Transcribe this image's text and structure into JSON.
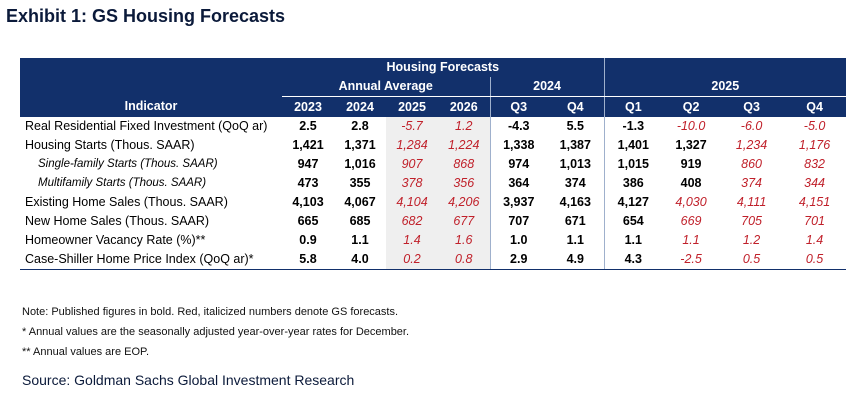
{
  "title": "Exhibit 1: GS Housing Forecasts",
  "table": {
    "banner": "Housing Forecasts",
    "group_annual": "Annual Average",
    "group_2024": "2024",
    "group_2025": "2025",
    "indicator_header": "Indicator",
    "columns": [
      "2023",
      "2024",
      "2025",
      "2026",
      "Q3",
      "Q4",
      "Q1",
      "Q2",
      "Q3",
      "Q4"
    ],
    "rows": [
      {
        "label": "Real Residential Fixed Investment (QoQ ar)",
        "sub": false,
        "values": [
          "2.5",
          "2.8",
          "-5.7",
          "1.2",
          "-4.3",
          "5.5",
          "-1.3",
          "-10.0",
          "-6.0",
          "-5.0"
        ],
        "forecast": [
          false,
          false,
          true,
          true,
          false,
          false,
          false,
          true,
          true,
          true
        ]
      },
      {
        "label": "Housing Starts (Thous. SAAR)",
        "sub": false,
        "values": [
          "1,421",
          "1,371",
          "1,284",
          "1,224",
          "1,338",
          "1,387",
          "1,401",
          "1,327",
          "1,234",
          "1,176"
        ],
        "forecast": [
          false,
          false,
          true,
          true,
          false,
          false,
          false,
          false,
          true,
          true
        ]
      },
      {
        "label": "Single-family Starts (Thous. SAAR)",
        "sub": true,
        "values": [
          "947",
          "1,016",
          "907",
          "868",
          "974",
          "1,013",
          "1,015",
          "919",
          "860",
          "832"
        ],
        "forecast": [
          false,
          false,
          true,
          true,
          false,
          false,
          false,
          false,
          true,
          true
        ]
      },
      {
        "label": "Multifamily Starts (Thous. SAAR)",
        "sub": true,
        "values": [
          "473",
          "355",
          "378",
          "356",
          "364",
          "374",
          "386",
          "408",
          "374",
          "344"
        ],
        "forecast": [
          false,
          false,
          true,
          true,
          false,
          false,
          false,
          false,
          true,
          true
        ]
      },
      {
        "label": "Existing Home Sales (Thous. SAAR)",
        "sub": false,
        "values": [
          "4,103",
          "4,067",
          "4,104",
          "4,206",
          "3,937",
          "4,163",
          "4,127",
          "4,030",
          "4,111",
          "4,151"
        ],
        "forecast": [
          false,
          false,
          true,
          true,
          false,
          false,
          false,
          true,
          true,
          true
        ]
      },
      {
        "label": "New Home Sales (Thous. SAAR)",
        "sub": false,
        "values": [
          "665",
          "685",
          "682",
          "677",
          "707",
          "671",
          "654",
          "669",
          "705",
          "701"
        ],
        "forecast": [
          false,
          false,
          true,
          true,
          false,
          false,
          false,
          true,
          true,
          true
        ]
      },
      {
        "label": "Homeowner Vacancy Rate (%)**",
        "sub": false,
        "values": [
          "0.9",
          "1.1",
          "1.4",
          "1.6",
          "1.0",
          "1.1",
          "1.1",
          "1.1",
          "1.2",
          "1.4"
        ],
        "forecast": [
          false,
          false,
          true,
          true,
          false,
          false,
          false,
          true,
          true,
          true
        ]
      },
      {
        "label": "Case-Shiller Home Price Index (QoQ ar)*",
        "sub": false,
        "values": [
          "5.8",
          "4.0",
          "0.2",
          "0.8",
          "2.9",
          "4.9",
          "4.3",
          "-2.5",
          "0.5",
          "0.5"
        ],
        "forecast": [
          false,
          false,
          true,
          true,
          false,
          false,
          false,
          true,
          true,
          true
        ]
      }
    ]
  },
  "notes": [
    "Note: Published figures in bold. Red, italicized numbers denote GS forecasts.",
    "* Annual values are the seasonally adjusted year-over-year rates for December.",
    "** Annual values are EOP."
  ],
  "source": "Source: Goldman Sachs Global Investment Research",
  "colors": {
    "header_bg": "#12306b",
    "forecast_red": "#c0202a",
    "shade": "#efefef"
  }
}
